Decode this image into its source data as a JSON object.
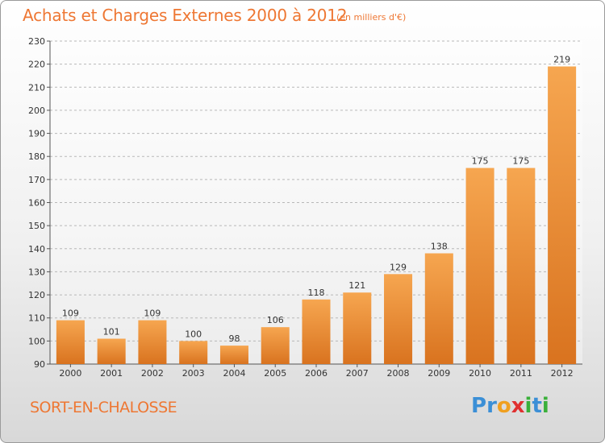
{
  "header": {
    "title": "Achats et Charges Externes 2000 à 2012",
    "subtitle": "(en milliers d'€)"
  },
  "footer": {
    "commune": "SORT-EN-CHALOSSE",
    "logo_letters": [
      "P",
      "r",
      "o",
      "x",
      "i",
      "t",
      "i"
    ],
    "logo_colors": [
      "#3b8fd6",
      "#3b8fd6",
      "#f0a020",
      "#e03030",
      "#3ab03a",
      "#3b8fd6",
      "#3ab03a"
    ]
  },
  "colors": {
    "bar_light": "#f6a650",
    "bar_dark": "#d9731f",
    "accent": "#ee7733",
    "grid": "#b8b8b8",
    "axis": "#555555"
  },
  "chart_data": {
    "type": "bar",
    "categories": [
      "2000",
      "2001",
      "2002",
      "2003",
      "2004",
      "2005",
      "2006",
      "2007",
      "2008",
      "2009",
      "2010",
      "2011",
      "2012"
    ],
    "values": [
      109,
      101,
      109,
      100,
      98,
      106,
      118,
      121,
      129,
      138,
      175,
      175,
      219
    ],
    "title": "Achats et Charges Externes 2000 à 2012",
    "xlabel": "",
    "ylabel": "",
    "ylim": [
      90,
      230
    ],
    "yticks": [
      90,
      100,
      110,
      120,
      130,
      140,
      150,
      160,
      170,
      180,
      190,
      200,
      210,
      220,
      230
    ],
    "grid": true
  }
}
